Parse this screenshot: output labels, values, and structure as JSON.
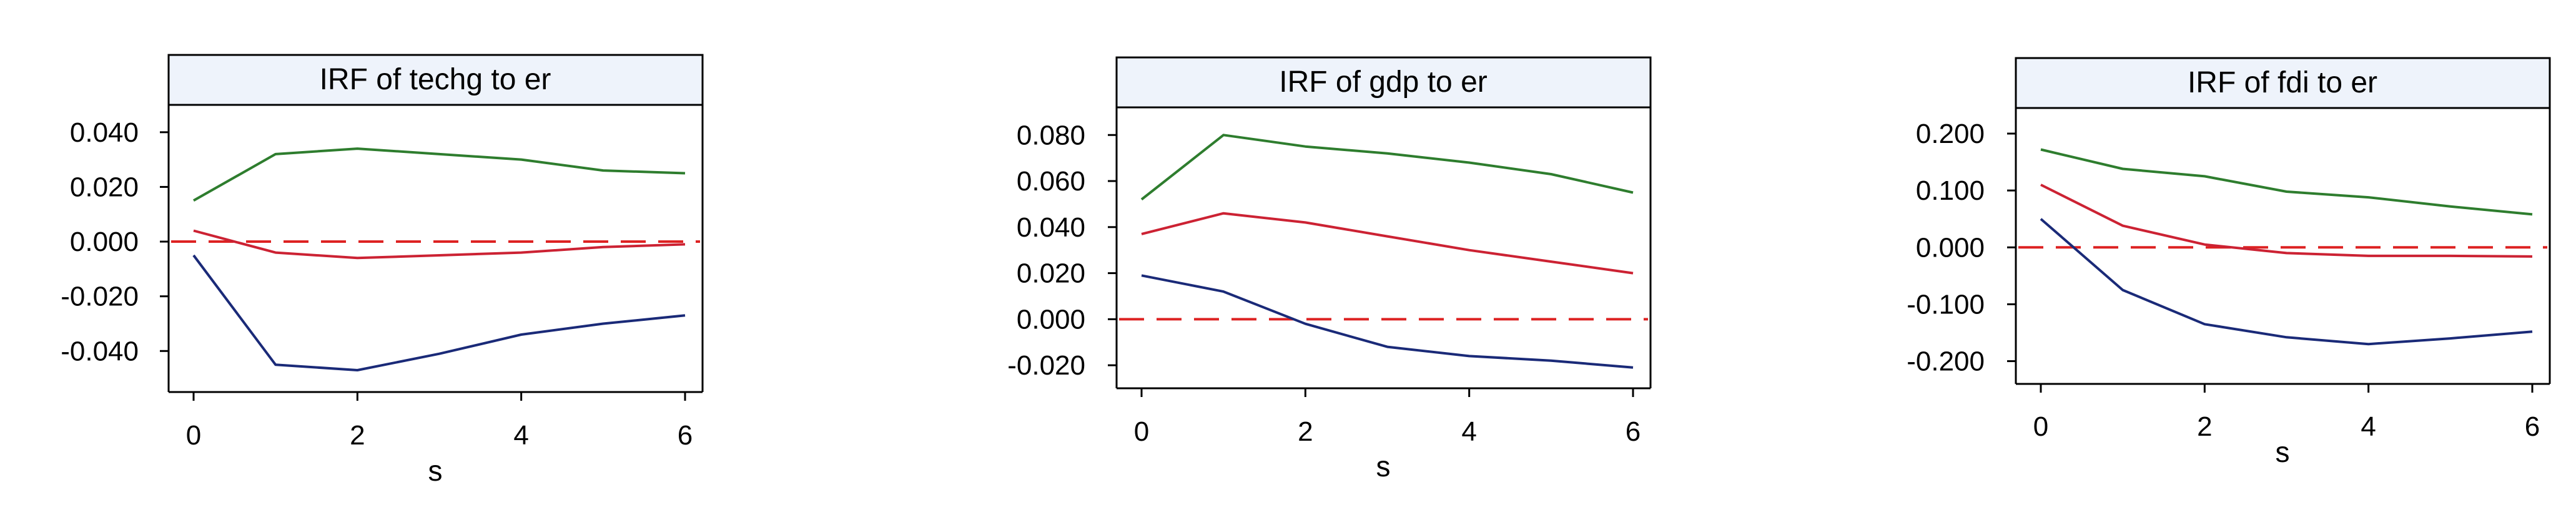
{
  "colors": {
    "upper": "#2e7d2e",
    "irf": "#cc2233",
    "lower": "#1a2a78",
    "zero": "#dd2222",
    "title_bg": "#eef3fb",
    "axis": "#000000"
  },
  "chart_data": [
    {
      "type": "line",
      "title": "IRF of techg to er",
      "xlabel": "s",
      "ylabel": "",
      "x": [
        0,
        1,
        2,
        3,
        4,
        5,
        6
      ],
      "xticks": [
        "0",
        "2",
        "4",
        "6"
      ],
      "xtick_values": [
        0,
        2,
        4,
        6
      ],
      "ylim": [
        -0.055,
        0.05
      ],
      "yticks": [
        "0.040",
        "0.020",
        "0.000",
        "-0.020",
        "-0.040"
      ],
      "ytick_values": [
        0.04,
        0.02,
        0.0,
        -0.02,
        -0.04
      ],
      "zero_line": true,
      "series": [
        {
          "role": "upper",
          "values": [
            0.015,
            0.032,
            0.034,
            0.032,
            0.03,
            0.026,
            0.025
          ]
        },
        {
          "role": "irf",
          "values": [
            0.004,
            -0.004,
            -0.006,
            -0.005,
            -0.004,
            -0.002,
            -0.001
          ]
        },
        {
          "role": "lower",
          "values": [
            -0.005,
            -0.045,
            -0.047,
            -0.041,
            -0.034,
            -0.03,
            -0.027
          ]
        }
      ]
    },
    {
      "type": "line",
      "title": "IRF of gdp to er",
      "xlabel": "s",
      "ylabel": "",
      "x": [
        0,
        1,
        2,
        3,
        4,
        5,
        6
      ],
      "xticks": [
        "0",
        "2",
        "4",
        "6"
      ],
      "xtick_values": [
        0,
        2,
        4,
        6
      ],
      "ylim": [
        -0.03,
        0.092
      ],
      "yticks": [
        "0.080",
        "0.060",
        "0.040",
        "0.020",
        "0.000",
        "-0.020"
      ],
      "ytick_values": [
        0.08,
        0.06,
        0.04,
        0.02,
        0.0,
        -0.02
      ],
      "zero_line": true,
      "series": [
        {
          "role": "upper",
          "values": [
            0.052,
            0.08,
            0.075,
            0.072,
            0.068,
            0.063,
            0.055
          ]
        },
        {
          "role": "irf",
          "values": [
            0.037,
            0.046,
            0.042,
            0.036,
            0.03,
            0.025,
            0.02
          ]
        },
        {
          "role": "lower",
          "values": [
            0.019,
            0.012,
            -0.002,
            -0.012,
            -0.016,
            -0.018,
            -0.021
          ]
        }
      ]
    },
    {
      "type": "line",
      "title": "IRF of fdi to er",
      "xlabel": "s",
      "ylabel": "",
      "x": [
        0,
        1,
        2,
        3,
        4,
        5,
        6
      ],
      "xticks": [
        "0",
        "2",
        "4",
        "6"
      ],
      "xtick_values": [
        0,
        2,
        4,
        6
      ],
      "ylim": [
        -0.24,
        0.245
      ],
      "yticks": [
        "0.200",
        "0.100",
        "0.000",
        "-0.100",
        "-0.200"
      ],
      "ytick_values": [
        0.2,
        0.1,
        0.0,
        -0.1,
        -0.2
      ],
      "zero_line": true,
      "series": [
        {
          "role": "upper",
          "values": [
            0.172,
            0.138,
            0.125,
            0.098,
            0.088,
            0.072,
            0.058
          ]
        },
        {
          "role": "irf",
          "values": [
            0.11,
            0.038,
            0.005,
            -0.01,
            -0.015,
            -0.015,
            -0.016
          ]
        },
        {
          "role": "lower",
          "values": [
            0.05,
            -0.075,
            -0.135,
            -0.158,
            -0.17,
            -0.16,
            -0.148
          ]
        }
      ]
    }
  ]
}
